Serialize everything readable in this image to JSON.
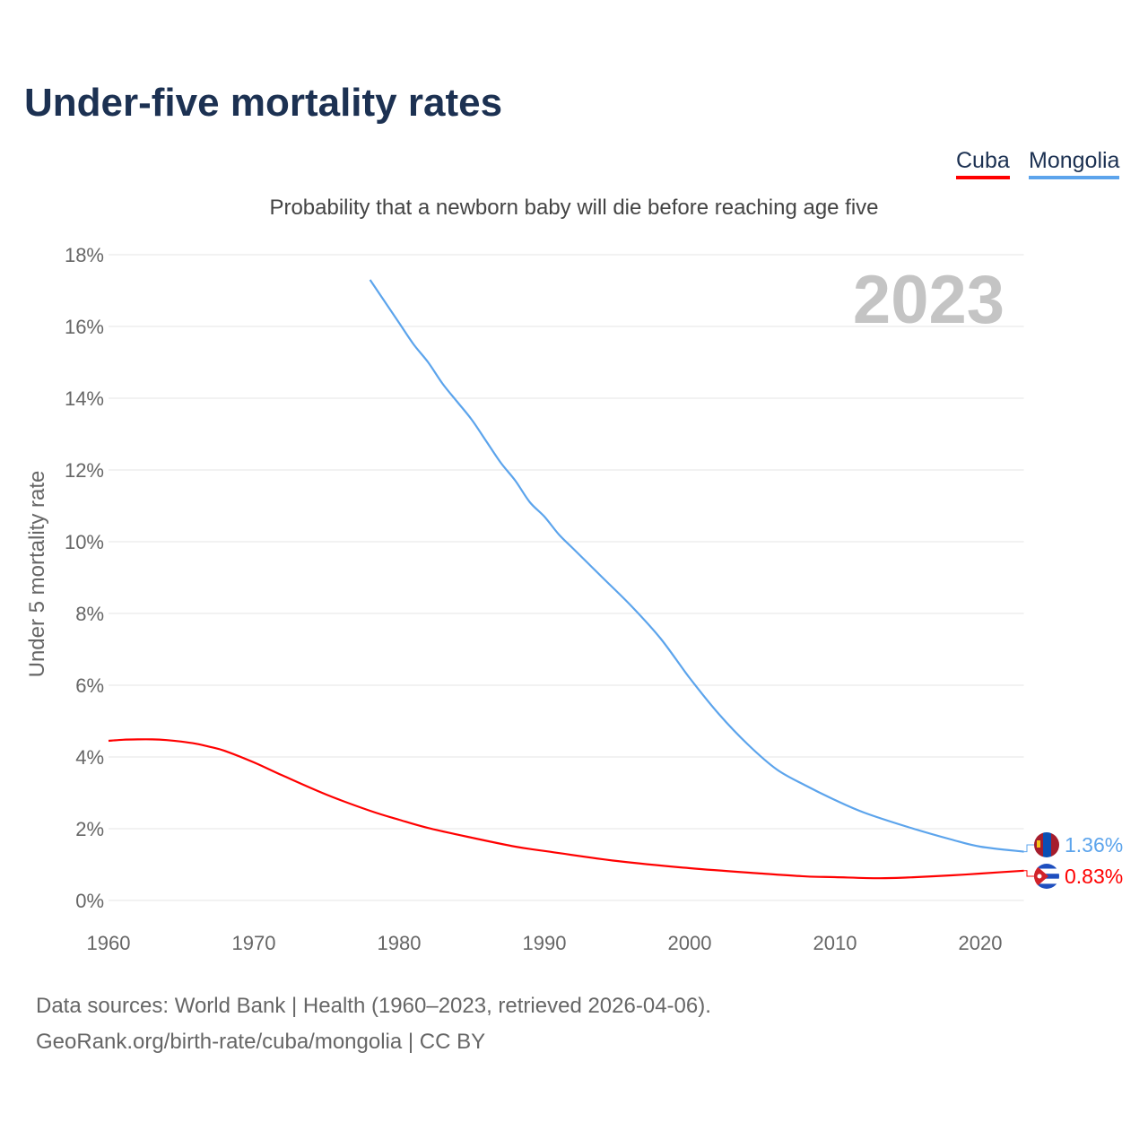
{
  "title": "Under-five mortality rates",
  "legend": [
    {
      "name": "Cuba",
      "color": "#ff0000"
    },
    {
      "name": "Mongolia",
      "color": "#5ca4ec"
    }
  ],
  "chart_data": {
    "type": "line",
    "title": "Under-five mortality rates",
    "subtitle": "Probability that a newborn baby will die before reaching age five",
    "ylabel": "Under 5 mortality rate",
    "xlabel": "",
    "year_watermark": "2023",
    "xlim": [
      1960,
      2023
    ],
    "ylim": [
      0,
      18
    ],
    "xticks": [
      1960,
      1970,
      1980,
      1990,
      2000,
      2010,
      2020
    ],
    "yticks": [
      0,
      2,
      4,
      6,
      8,
      10,
      12,
      14,
      16,
      18
    ],
    "ytick_labels": [
      "0%",
      "2%",
      "4%",
      "6%",
      "8%",
      "10%",
      "12%",
      "14%",
      "16%",
      "18%"
    ],
    "grid": true,
    "series": [
      {
        "name": "Cuba",
        "color": "#ff0000",
        "end_label": "0.83%",
        "x": [
          1960,
          1961,
          1962,
          1963,
          1964,
          1965,
          1966,
          1967,
          1968,
          1970,
          1972,
          1975,
          1978,
          1980,
          1982,
          1985,
          1988,
          1990,
          1995,
          2000,
          2005,
          2008,
          2010,
          2013,
          2015,
          2018,
          2020,
          2023
        ],
        "y": [
          4.45,
          4.48,
          4.49,
          4.49,
          4.47,
          4.43,
          4.37,
          4.28,
          4.17,
          3.85,
          3.48,
          2.95,
          2.5,
          2.25,
          2.02,
          1.75,
          1.5,
          1.38,
          1.1,
          0.9,
          0.75,
          0.67,
          0.65,
          0.62,
          0.64,
          0.7,
          0.75,
          0.83
        ]
      },
      {
        "name": "Mongolia",
        "color": "#5ca4ec",
        "end_label": "1.36%",
        "x": [
          1978,
          1979,
          1980,
          1981,
          1982,
          1983,
          1984,
          1985,
          1986,
          1987,
          1988,
          1989,
          1990,
          1991,
          1992,
          1994,
          1996,
          1998,
          2000,
          2002,
          2004,
          2006,
          2008,
          2010,
          2012,
          2015,
          2018,
          2020,
          2023
        ],
        "y": [
          17.3,
          16.7,
          16.1,
          15.5,
          15.0,
          14.4,
          13.9,
          13.4,
          12.8,
          12.2,
          11.7,
          11.1,
          10.7,
          10.2,
          9.8,
          9.0,
          8.2,
          7.3,
          6.2,
          5.2,
          4.35,
          3.65,
          3.2,
          2.8,
          2.45,
          2.05,
          1.7,
          1.5,
          1.36
        ]
      }
    ]
  },
  "source_line1": "Data sources: World Bank | Health (1960–2023, retrieved 2026-04-06).",
  "source_line2": "GeoRank.org/birth-rate/cuba/mongolia | CC BY"
}
